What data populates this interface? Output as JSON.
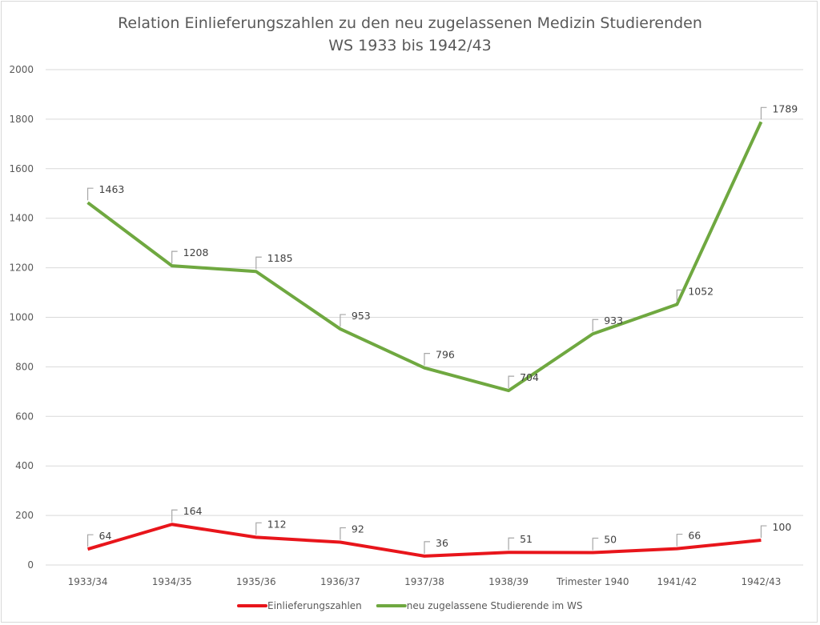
{
  "chart_data": {
    "type": "line",
    "title": [
      "Relation Einlieferungszahlen zu den neu zugelassenen Medizin Studierenden",
      "WS 1933 bis 1942/43"
    ],
    "xlabel": "",
    "ylabel": "",
    "ylim": [
      0,
      2000
    ],
    "yticks": [
      0,
      200,
      400,
      600,
      800,
      1000,
      1200,
      1400,
      1600,
      1800,
      2000
    ],
    "grid": true,
    "legend_position": "bottom",
    "categories": [
      "1933/34",
      "1934/35",
      "1935/36",
      "1936/37",
      "1937/38",
      "1938/39",
      "Trimester 1940",
      "1941/42",
      "1942/43"
    ],
    "series": [
      {
        "name": "Einlieferungszahlen",
        "color": "#e8151b",
        "values": [
          64,
          164,
          112,
          92,
          36,
          51,
          50,
          66,
          100
        ]
      },
      {
        "name": "neu zugelassene Studierende im WS",
        "color": "#6fa840",
        "values": [
          1463,
          1208,
          1185,
          953,
          796,
          704,
          933,
          1052,
          1789
        ]
      }
    ]
  }
}
